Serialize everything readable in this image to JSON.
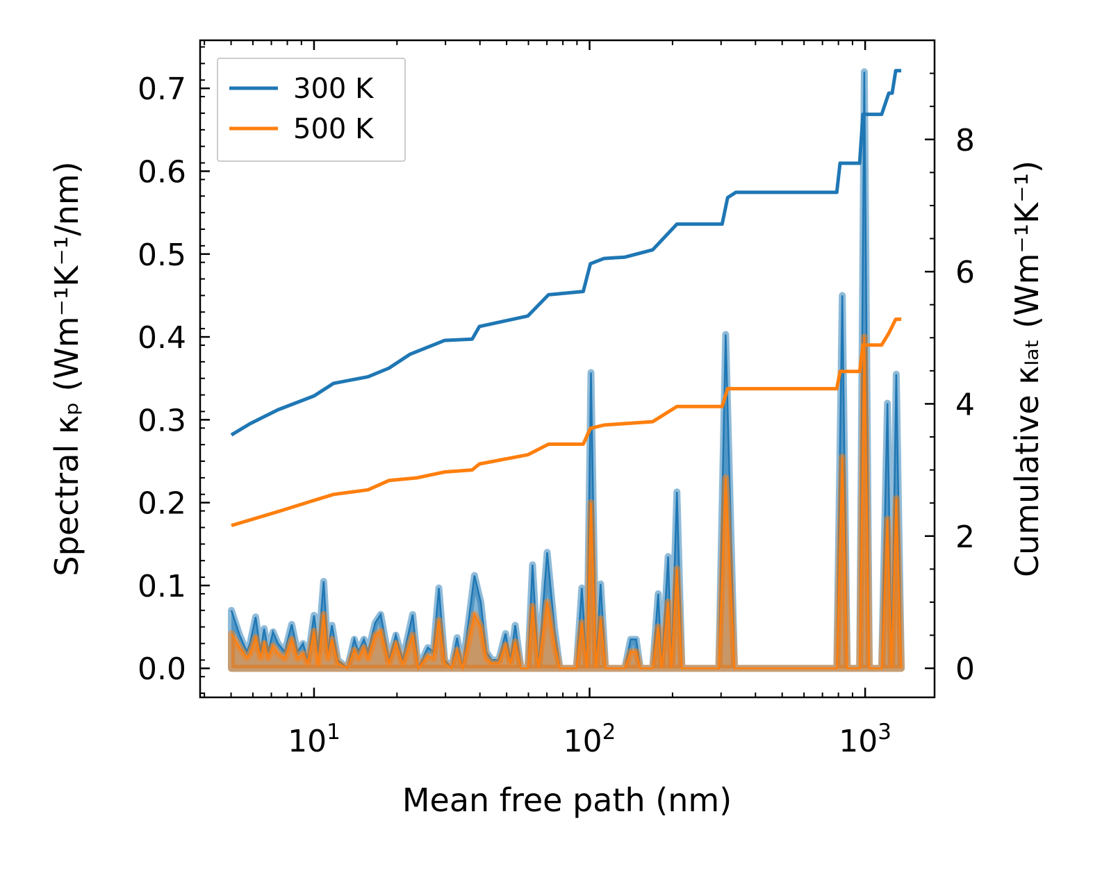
{
  "chart_data": {
    "type": "line",
    "title": "",
    "xlabel": "Mean free path (nm)",
    "ylabel_left": "Spectral κₚ (Wm⁻¹K⁻¹/nm)",
    "ylabel_right": "Cumulative κₗₐₜ (Wm⁻¹K⁻¹)",
    "x_scale": "log",
    "x_note": "x values given as log10 of mean free path in nm",
    "xlim_nm": [
      3.86,
      1786
    ],
    "ylim_left": [
      -0.035,
      0.758
    ],
    "ylim_right": [
      -0.44,
      9.5
    ],
    "x_ticks": [
      {
        "base": "10",
        "exp": "1",
        "value": 1
      },
      {
        "base": "10",
        "exp": "2",
        "value": 2
      },
      {
        "base": "10",
        "exp": "3",
        "value": 3
      }
    ],
    "y_ticks_left": [
      {
        "label": "0.0",
        "value": 0
      },
      {
        "label": "0.1",
        "value": 0.1
      },
      {
        "label": "0.2",
        "value": 0.2
      },
      {
        "label": "0.3",
        "value": 0.3
      },
      {
        "label": "0.4",
        "value": 0.4
      },
      {
        "label": "0.5",
        "value": 0.5
      },
      {
        "label": "0.6",
        "value": 0.6
      },
      {
        "label": "0.7",
        "value": 0.7
      }
    ],
    "y_ticks_right": [
      {
        "label": "0",
        "value": 0
      },
      {
        "label": "2",
        "value": 2
      },
      {
        "label": "4",
        "value": 4
      },
      {
        "label": "6",
        "value": 6
      },
      {
        "label": "8",
        "value": 8
      }
    ],
    "legend": {
      "placement": "top-left",
      "entries": [
        {
          "label": "300 K",
          "color": "#1f77b4"
        },
        {
          "label": "500 K",
          "color": "#ff7f0e"
        }
      ]
    },
    "spectral": {
      "log10_x": [
        0.7,
        0.73,
        0.756,
        0.768,
        0.788,
        0.806,
        0.819,
        0.834,
        0.851,
        0.869,
        0.894,
        0.919,
        0.94,
        0.96,
        0.977,
        1.0,
        1.015,
        1.035,
        1.05,
        1.065,
        1.086,
        1.121,
        1.146,
        1.161,
        1.181,
        1.196,
        1.222,
        1.242,
        1.272,
        1.297,
        1.322,
        1.358,
        1.378,
        1.413,
        1.433,
        1.453,
        1.474,
        1.499,
        1.519,
        1.539,
        1.582,
        1.605,
        1.625,
        1.645,
        1.67,
        1.695,
        1.713,
        1.73,
        1.751,
        1.776,
        1.793,
        1.814,
        1.846,
        1.872,
        1.892,
        1.952,
        1.972,
        1.99,
        2.005,
        2.023,
        2.04,
        2.058,
        2.128,
        2.149,
        2.169,
        2.184,
        2.229,
        2.249,
        2.262,
        2.285,
        2.297,
        2.317,
        2.335,
        2.469,
        2.494,
        2.526,
        2.897,
        2.917,
        2.935,
        2.98,
        2.997,
        3.015,
        3.06,
        3.081,
        3.096,
        3.113,
        3.131
      ],
      "series": [
        {
          "name": "300 K",
          "values": [
            0.07,
            0.04,
            0.02,
            0.03,
            0.062,
            0.02,
            0.048,
            0.02,
            0.044,
            0.03,
            0.02,
            0.053,
            0.02,
            0.03,
            0.01,
            0.064,
            0.02,
            0.105,
            0.02,
            0.052,
            0.01,
            0.0,
            0.035,
            0.02,
            0.035,
            0.02,
            0.055,
            0.065,
            0.01,
            0.04,
            0.01,
            0.065,
            0.0,
            0.025,
            0.02,
            0.097,
            0.01,
            0.0,
            0.037,
            0.0,
            0.112,
            0.08,
            0.02,
            0.01,
            0.01,
            0.042,
            0.01,
            0.052,
            0.0,
            0.0,
            0.125,
            0.0,
            0.14,
            0.05,
            0.0,
            0.0,
            0.097,
            0.0,
            0.357,
            0.0,
            0.102,
            0.0,
            0.0,
            0.035,
            0.035,
            0.0,
            0.0,
            0.09,
            0.0,
            0.135,
            0.0,
            0.213,
            0.0,
            0.0,
            0.403,
            0.0,
            0.0,
            0.45,
            0.0,
            0.0,
            0.72,
            0.0,
            0.0,
            0.32,
            0.0,
            0.355,
            0.0
          ]
        },
        {
          "name": "500 K",
          "values": [
            0.042,
            0.025,
            0.013,
            0.018,
            0.037,
            0.013,
            0.03,
            0.013,
            0.027,
            0.018,
            0.012,
            0.035,
            0.012,
            0.018,
            0.006,
            0.045,
            0.003,
            0.065,
            0.012,
            0.035,
            0.006,
            0.0,
            0.022,
            0.012,
            0.025,
            0.012,
            0.04,
            0.045,
            0.006,
            0.03,
            0.005,
            0.04,
            0.0,
            0.015,
            0.012,
            0.058,
            0.006,
            0.0,
            0.022,
            0.0,
            0.065,
            0.05,
            0.012,
            0.006,
            0.006,
            0.028,
            0.006,
            0.032,
            0.0,
            0.0,
            0.075,
            0.0,
            0.08,
            0.03,
            0.0,
            0.0,
            0.055,
            0.0,
            0.2,
            0.0,
            0.06,
            0.0,
            0.0,
            0.02,
            0.02,
            0.0,
            0.0,
            0.05,
            0.0,
            0.08,
            0.0,
            0.12,
            0.0,
            0.0,
            0.23,
            0.0,
            0.0,
            0.255,
            0.0,
            0.0,
            0.4,
            0.0,
            0.0,
            0.18,
            0.0,
            0.205,
            0.0
          ]
        }
      ]
    },
    "cumulative": [
      {
        "name": "300 K",
        "log10_x": [
          0.7,
          0.768,
          0.869,
          1.0,
          1.071,
          1.196,
          1.272,
          1.348,
          1.474,
          1.574,
          1.6,
          1.776,
          1.851,
          1.977,
          2.003,
          2.053,
          2.128,
          2.229,
          2.317,
          2.481,
          2.501,
          2.531,
          2.897,
          2.909,
          2.98,
          2.992,
          3.06,
          3.086,
          3.098,
          3.111,
          3.131
        ],
        "values": [
          3.53,
          3.7,
          3.91,
          4.12,
          4.31,
          4.41,
          4.54,
          4.75,
          4.96,
          4.98,
          5.17,
          5.33,
          5.65,
          5.7,
          6.12,
          6.2,
          6.22,
          6.33,
          6.72,
          6.72,
          7.12,
          7.2,
          7.2,
          7.64,
          7.64,
          8.38,
          8.38,
          8.7,
          8.7,
          9.04,
          9.04
        ]
      },
      {
        "name": "500 K",
        "log10_x": [
          0.7,
          0.869,
          1.0,
          1.071,
          1.196,
          1.272,
          1.373,
          1.474,
          1.574,
          1.6,
          1.776,
          1.851,
          1.977,
          2.003,
          2.053,
          2.229,
          2.317,
          2.481,
          2.501,
          2.897,
          2.909,
          2.98,
          2.992,
          3.06,
          3.086,
          3.111,
          3.131
        ],
        "values": [
          2.16,
          2.37,
          2.54,
          2.63,
          2.7,
          2.84,
          2.88,
          2.97,
          3.0,
          3.09,
          3.23,
          3.39,
          3.39,
          3.63,
          3.68,
          3.73,
          3.96,
          3.96,
          4.23,
          4.23,
          4.49,
          4.49,
          4.89,
          4.89,
          5.07,
          5.28,
          5.28
        ]
      }
    ]
  }
}
